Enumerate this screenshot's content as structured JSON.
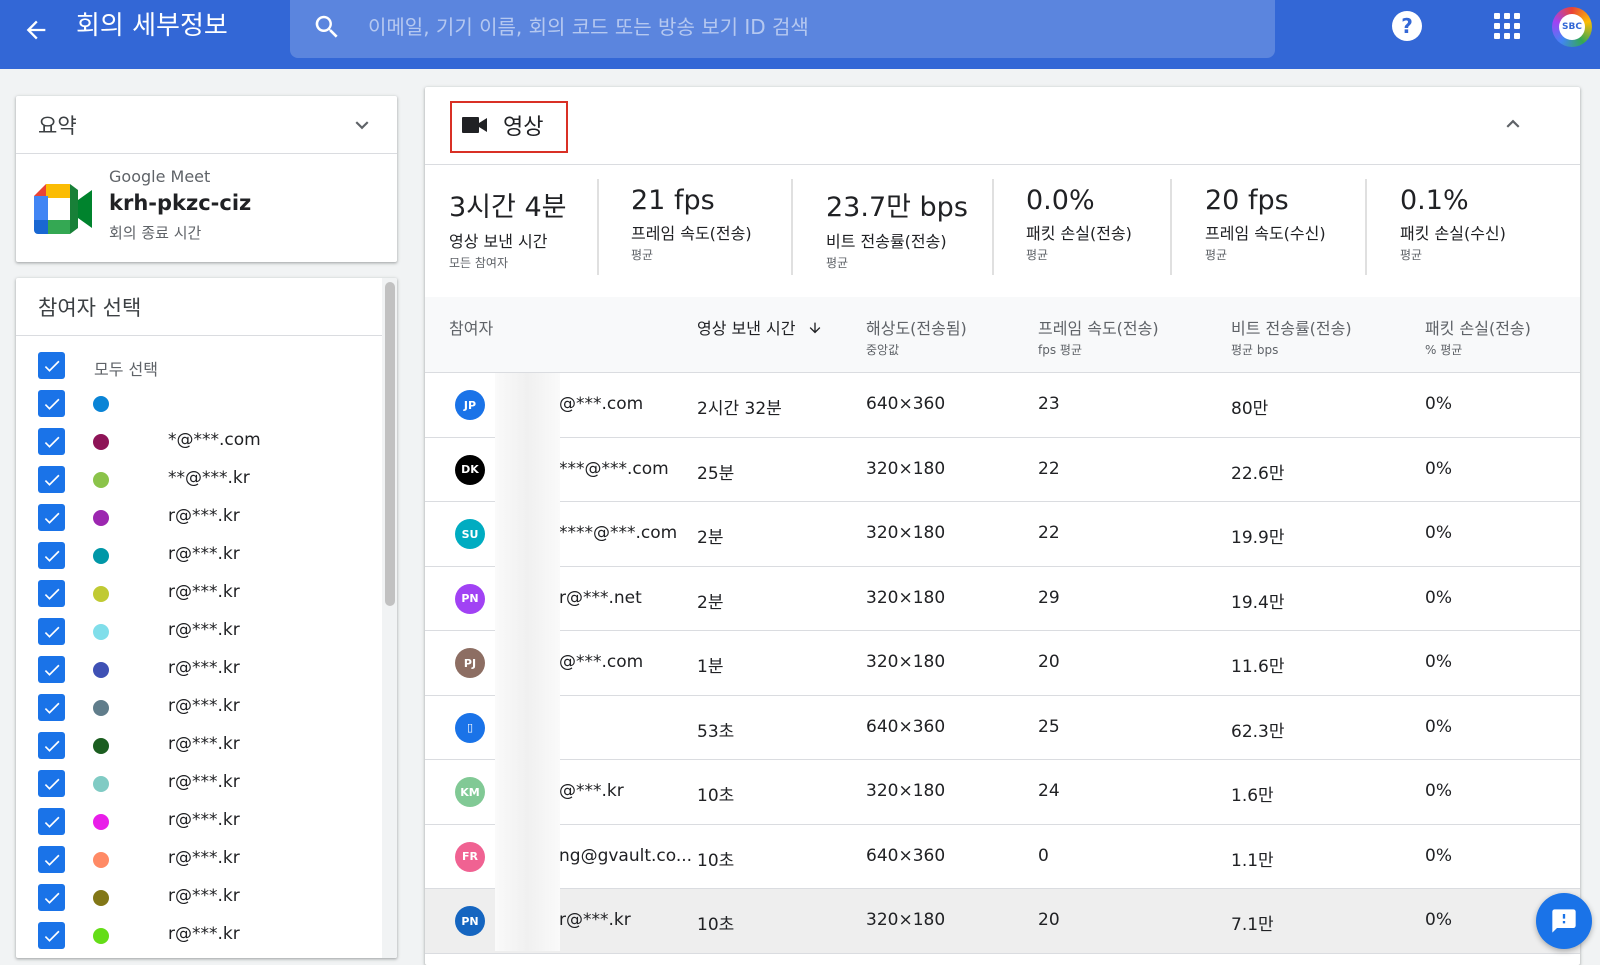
{
  "header": {
    "title": "회의 세부정보",
    "search_placeholder": "이메일, 기기 이름, 회의 코드 또는 방송 보기 ID 검색",
    "avatar_text": "SBC",
    "help_label": "?"
  },
  "summary": {
    "title": "요약",
    "app_name": "Google Meet",
    "meeting_code": "krh-pkzc-ciz",
    "meeting_status": "회의 종료 시간"
  },
  "participants_panel": {
    "title": "참여자 선택",
    "select_all": "모두 선택",
    "items": [
      {
        "label": "",
        "color": "#0a84d6"
      },
      {
        "label": "*@***.com",
        "color": "#8e1457"
      },
      {
        "label": "**@***.kr",
        "color": "#8bc34a"
      },
      {
        "label": "r@***.kr",
        "color": "#9c27b0"
      },
      {
        "label": "r@***.kr",
        "color": "#0097a7"
      },
      {
        "label": "r@***.kr",
        "color": "#c0ca33"
      },
      {
        "label": "r@***.kr",
        "color": "#80deea"
      },
      {
        "label": "r@***.kr",
        "color": "#3f51b5"
      },
      {
        "label": "r@***.kr",
        "color": "#607d8b"
      },
      {
        "label": "r@***.kr",
        "color": "#1b5e20"
      },
      {
        "label": "r@***.kr",
        "color": "#80cbc4"
      },
      {
        "label": "r@***.kr",
        "color": "#e91ee9"
      },
      {
        "label": "r@***.kr",
        "color": "#ff8a65"
      },
      {
        "label": "r@***.kr",
        "color": "#827717"
      },
      {
        "label": "r@***.kr",
        "color": "#64dd17"
      }
    ]
  },
  "video": {
    "title": "영상",
    "stats": [
      {
        "value": "3시간 4분",
        "label": "영상 보낸 시간",
        "sub": "모든 참여자"
      },
      {
        "value": "21 fps",
        "label": "프레임 속도(전송)",
        "sub": "평균"
      },
      {
        "value": "23.7만 bps",
        "label": "비트 전송률(전송)",
        "sub": "평균"
      },
      {
        "value": "0.0%",
        "label": "패킷 손실(전송)",
        "sub": "평균"
      },
      {
        "value": "20 fps",
        "label": "프레임 속도(수신)",
        "sub": "평균"
      },
      {
        "value": "0.1%",
        "label": "패킷 손실(수신)",
        "sub": "평균"
      }
    ],
    "columns": [
      {
        "label": "참여자",
        "sub": ""
      },
      {
        "label": "영상 보낸 시간",
        "sub": ""
      },
      {
        "label": "해상도(전송됨)",
        "sub": "중앙값"
      },
      {
        "label": "프레임 속도(전송)",
        "sub": "fps 평균"
      },
      {
        "label": "비트 전송률(전송)",
        "sub": "평균 bps"
      },
      {
        "label": "패킷 손실(전송)",
        "sub": "% 평균"
      }
    ],
    "rows": [
      {
        "initials": "JP",
        "color": "#1a73e8",
        "email": "@***.com",
        "time": "2시간 32분",
        "res": "640×360",
        "fps": "23",
        "bps": "80만",
        "loss": "0%"
      },
      {
        "initials": "DK",
        "color": "#000000",
        "email": "***@***.com",
        "time": "25분",
        "res": "320×180",
        "fps": "22",
        "bps": "22.6만",
        "loss": "0%"
      },
      {
        "initials": "SU",
        "color": "#00acc1",
        "email": "****@***.com",
        "time": "2분",
        "res": "320×180",
        "fps": "22",
        "bps": "19.9만",
        "loss": "0%"
      },
      {
        "initials": "PN",
        "color": "#a142f4",
        "email": "r@***.net",
        "time": "2분",
        "res": "320×180",
        "fps": "29",
        "bps": "19.4만",
        "loss": "0%"
      },
      {
        "initials": "PJ",
        "color": "#8d6e63",
        "email": "@***.com",
        "time": "1분",
        "res": "320×180",
        "fps": "20",
        "bps": "11.6만",
        "loss": "0%"
      },
      {
        "initials": "▯",
        "color": "#1a73e8",
        "email": "",
        "time": "53초",
        "res": "640×360",
        "fps": "25",
        "bps": "62.3만",
        "loss": "0%"
      },
      {
        "initials": "KM",
        "color": "#81c995",
        "email": "@***.kr",
        "time": "10초",
        "res": "320×180",
        "fps": "24",
        "bps": "1.6만",
        "loss": "0%"
      },
      {
        "initials": "FR",
        "color": "#f06292",
        "email": "ng@gvault.co...",
        "time": "10초",
        "res": "640×360",
        "fps": "0",
        "bps": "1.1만",
        "loss": "0%"
      },
      {
        "initials": "PN",
        "color": "#1565c0",
        "email": "r@***.kr",
        "time": "10초",
        "res": "320×180",
        "fps": "20",
        "bps": "7.1만",
        "loss": "0%"
      }
    ]
  }
}
